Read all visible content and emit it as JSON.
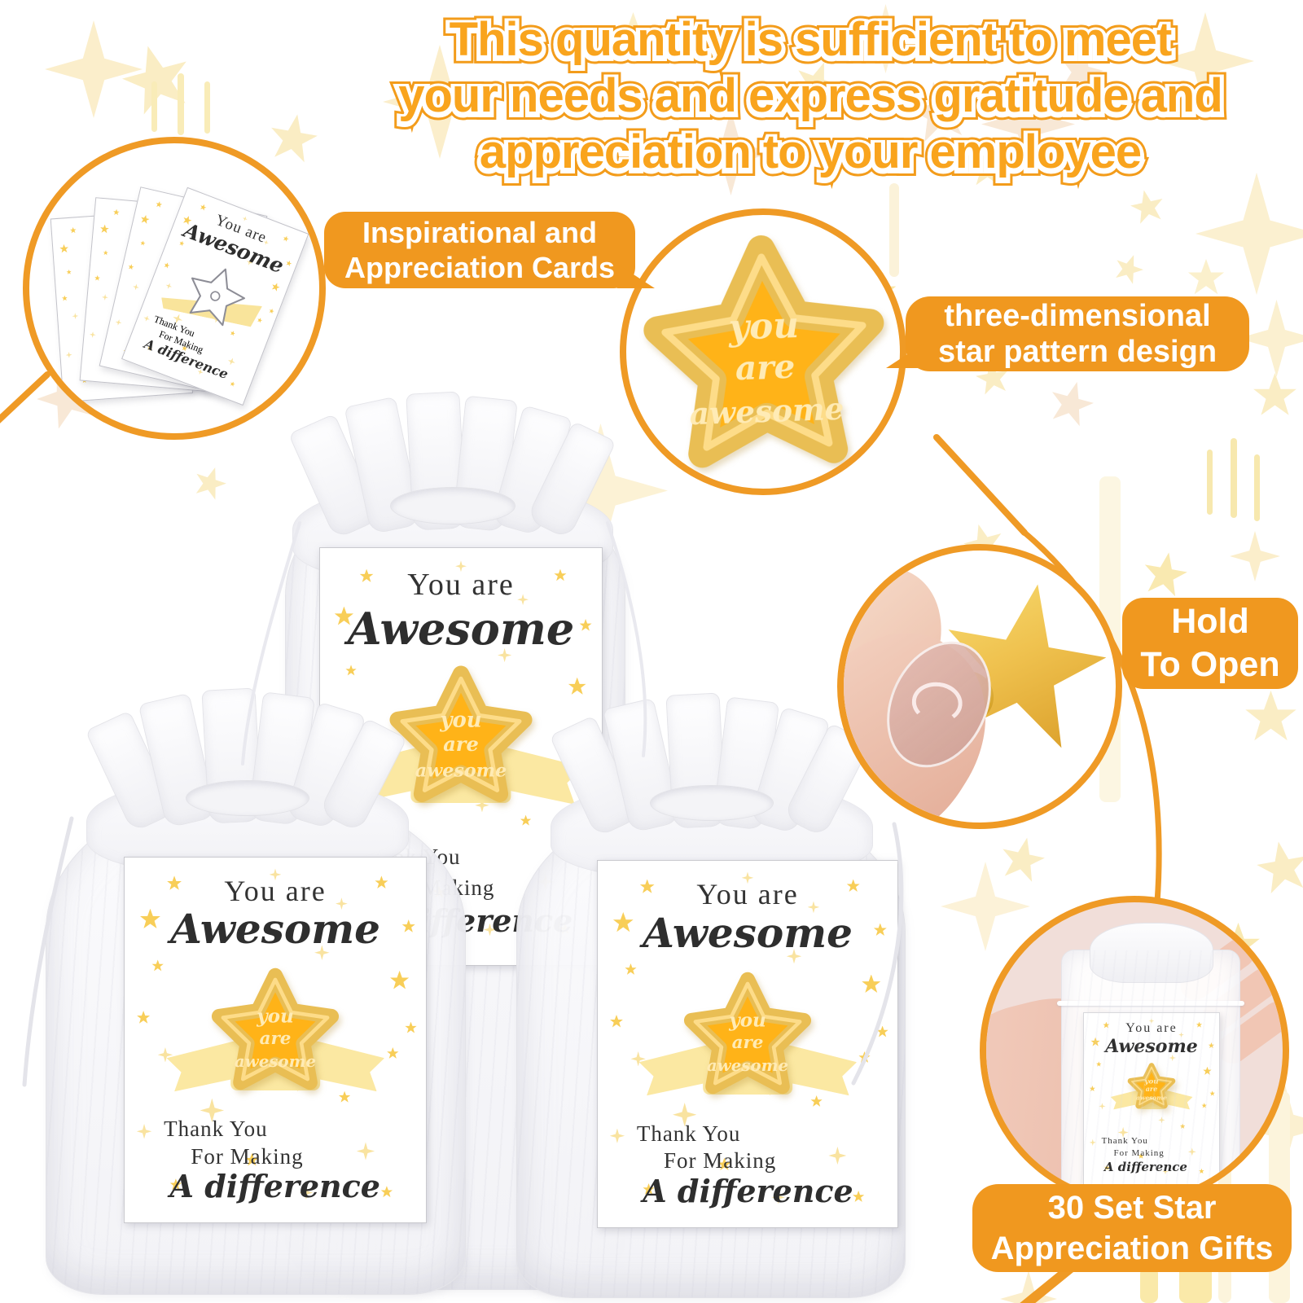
{
  "headline": {
    "lines": [
      "This quantity is sufficient to meet",
      "your needs and express gratitude and",
      "appreciation to your employee"
    ]
  },
  "labels": {
    "cards": [
      "Inspirational and",
      "Appreciation Cards"
    ],
    "design": [
      "three-dimensional",
      "star pattern design"
    ],
    "hold": [
      "Hold",
      "To Open"
    ],
    "sets": [
      "30 Set Star",
      "Appreciation Gifts"
    ]
  },
  "card": {
    "top1": "You are",
    "top2": "Awesome",
    "bottom1": "Thank You",
    "bottom2": "For Making",
    "bottom3": "A difference"
  },
  "pin": {
    "line1": "you",
    "line2": "are",
    "line3": "awesome"
  },
  "colors": {
    "accent_orange": "#F0981F",
    "headline_orange": "#F9A41D",
    "enamel_yellow": "#FFB318",
    "gold_rim": "#E9BE54",
    "ribbon_yellow": "#FBE8A2",
    "pale_star": "#FBEECB",
    "bright_star": "#F9DD7F",
    "photo_pink": "#F1DED9"
  }
}
